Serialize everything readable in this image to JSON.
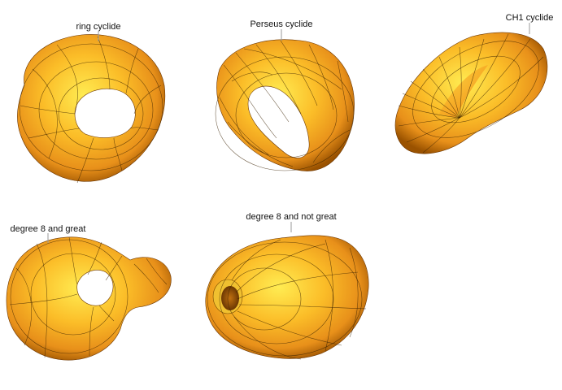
{
  "surfaces": [
    {
      "id": "ring",
      "label": "ring cyclide"
    },
    {
      "id": "perseus",
      "label": "Perseus cyclide"
    },
    {
      "id": "ch1",
      "label": "CH1 cyclide"
    },
    {
      "id": "deg8great",
      "label": "degree 8 and great"
    },
    {
      "id": "deg8notgreat",
      "label": "degree 8 and not great"
    }
  ],
  "colors": {
    "surface_light": "#ffe84a",
    "surface_mid": "#f7a81c",
    "surface_dark": "#8a4a00",
    "mesh_line": "#3a2200",
    "label_text": "#111111",
    "leader_line": "#9a9a9a",
    "background": "#ffffff"
  }
}
